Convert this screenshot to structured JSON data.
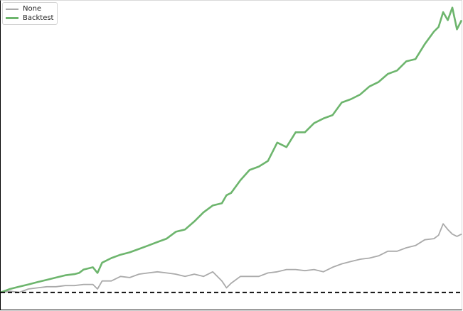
{
  "chart_data": {
    "type": "line",
    "title": "",
    "xlabel": "",
    "ylabel": "",
    "xlim": [
      0,
      100
    ],
    "ylim": [
      0.85,
      3.55
    ],
    "grid": false,
    "legend_location": "top-left",
    "baseline": {
      "value": 1.0,
      "style": "dashed",
      "color": "#000000"
    },
    "series": [
      {
        "name": "None",
        "color": "#aaaaaa",
        "x": [
          0,
          2,
          4,
          6,
          8,
          10,
          12,
          14,
          16,
          18,
          20,
          21,
          22,
          24,
          26,
          28,
          30,
          32,
          34,
          36,
          38,
          40,
          42,
          44,
          46,
          48,
          49,
          50,
          52,
          54,
          56,
          58,
          60,
          62,
          64,
          66,
          68,
          70,
          72,
          74,
          76,
          78,
          80,
          82,
          84,
          86,
          88,
          90,
          92,
          94,
          95,
          96,
          97,
          98,
          99,
          100
        ],
        "y": [
          1.0,
          1.01,
          1.0,
          1.03,
          1.04,
          1.05,
          1.05,
          1.06,
          1.06,
          1.07,
          1.07,
          1.03,
          1.1,
          1.1,
          1.14,
          1.13,
          1.16,
          1.17,
          1.18,
          1.17,
          1.16,
          1.14,
          1.16,
          1.14,
          1.18,
          1.1,
          1.04,
          1.08,
          1.14,
          1.14,
          1.14,
          1.17,
          1.18,
          1.2,
          1.2,
          1.19,
          1.2,
          1.18,
          1.22,
          1.25,
          1.27,
          1.29,
          1.3,
          1.32,
          1.36,
          1.36,
          1.39,
          1.41,
          1.46,
          1.47,
          1.5,
          1.6,
          1.55,
          1.51,
          1.49,
          1.51
        ]
      },
      {
        "name": "Backtest",
        "color": "#6db56d",
        "x": [
          0,
          2,
          4,
          6,
          8,
          10,
          12,
          14,
          16,
          17,
          18,
          20,
          21,
          22,
          24,
          26,
          28,
          30,
          32,
          34,
          36,
          38,
          40,
          42,
          44,
          46,
          48,
          49,
          50,
          52,
          54,
          56,
          58,
          60,
          62,
          64,
          66,
          68,
          70,
          72,
          74,
          76,
          78,
          80,
          82,
          84,
          86,
          88,
          90,
          92,
          94,
          95,
          96,
          97,
          98,
          99,
          100
        ],
        "y": [
          1.0,
          1.03,
          1.05,
          1.07,
          1.09,
          1.11,
          1.13,
          1.15,
          1.16,
          1.17,
          1.2,
          1.22,
          1.17,
          1.26,
          1.3,
          1.33,
          1.35,
          1.38,
          1.41,
          1.44,
          1.47,
          1.53,
          1.55,
          1.62,
          1.7,
          1.76,
          1.78,
          1.85,
          1.87,
          1.98,
          2.07,
          2.1,
          2.15,
          2.31,
          2.27,
          2.4,
          2.4,
          2.48,
          2.52,
          2.55,
          2.66,
          2.69,
          2.73,
          2.8,
          2.84,
          2.91,
          2.94,
          3.02,
          3.04,
          3.17,
          3.28,
          3.32,
          3.45,
          3.38,
          3.49,
          3.3,
          3.38
        ]
      }
    ]
  }
}
